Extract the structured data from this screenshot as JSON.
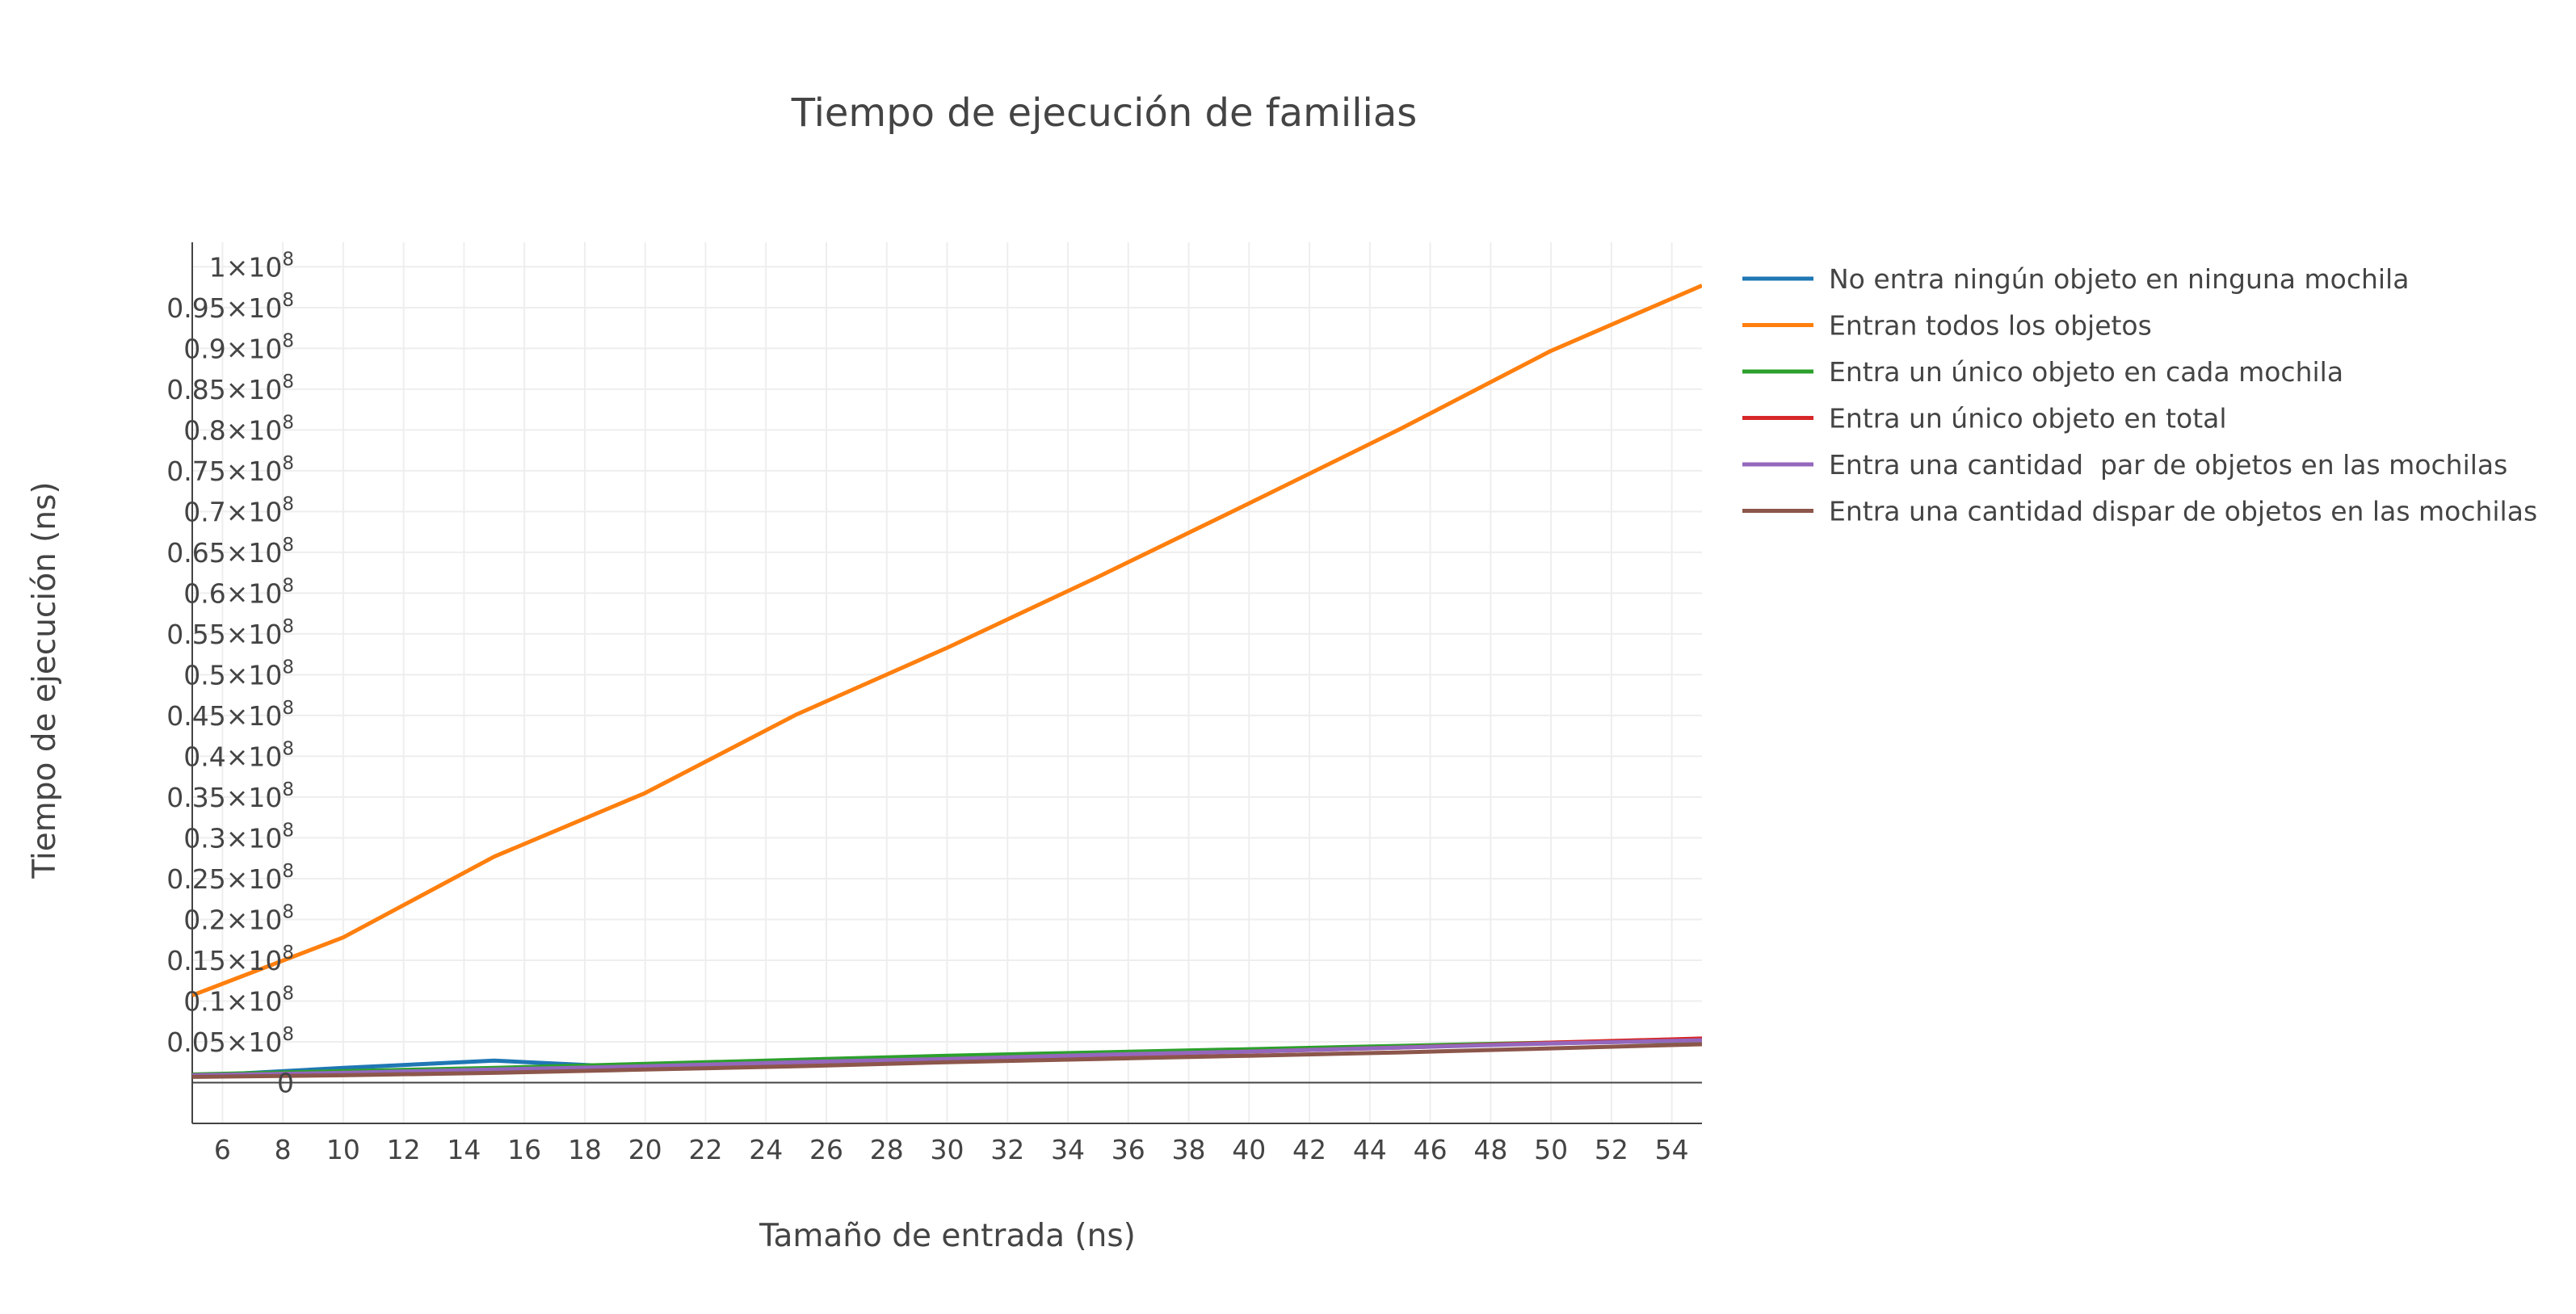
{
  "chart_data": {
    "type": "line",
    "title": "Tiempo de ejecución de familias",
    "xlabel": "Tamaño de entrada (ns)",
    "ylabel": "Tiempo de ejecución (ns)",
    "xlim": [
      5,
      55
    ],
    "ylim": [
      -5000000,
      103000000
    ],
    "xticks": [
      6,
      8,
      10,
      12,
      14,
      16,
      18,
      20,
      22,
      24,
      26,
      28,
      30,
      32,
      34,
      36,
      38,
      40,
      42,
      44,
      46,
      48,
      50,
      52,
      54
    ],
    "yticks": [
      {
        "value": 0,
        "label": "0",
        "exp": ""
      },
      {
        "value": 5000000,
        "label": "0.05×10",
        "exp": "8"
      },
      {
        "value": 10000000,
        "label": "0.1×10",
        "exp": "8"
      },
      {
        "value": 15000000,
        "label": "0.15×10",
        "exp": "8"
      },
      {
        "value": 20000000,
        "label": "0.2×10",
        "exp": "8"
      },
      {
        "value": 25000000,
        "label": "0.25×10",
        "exp": "8"
      },
      {
        "value": 30000000,
        "label": "0.3×10",
        "exp": "8"
      },
      {
        "value": 35000000,
        "label": "0.35×10",
        "exp": "8"
      },
      {
        "value": 40000000,
        "label": "0.4×10",
        "exp": "8"
      },
      {
        "value": 45000000,
        "label": "0.45×10",
        "exp": "8"
      },
      {
        "value": 50000000,
        "label": "0.5×10",
        "exp": "8"
      },
      {
        "value": 55000000,
        "label": "0.55×10",
        "exp": "8"
      },
      {
        "value": 60000000,
        "label": "0.6×10",
        "exp": "8"
      },
      {
        "value": 65000000,
        "label": "0.65×10",
        "exp": "8"
      },
      {
        "value": 70000000,
        "label": "0.7×10",
        "exp": "8"
      },
      {
        "value": 75000000,
        "label": "0.75×10",
        "exp": "8"
      },
      {
        "value": 80000000,
        "label": "0.8×10",
        "exp": "8"
      },
      {
        "value": 85000000,
        "label": "0.85×10",
        "exp": "8"
      },
      {
        "value": 90000000,
        "label": "0.9×10",
        "exp": "8"
      },
      {
        "value": 95000000,
        "label": "0.95×10",
        "exp": "8"
      },
      {
        "value": 100000000,
        "label": "1×10",
        "exp": "8"
      }
    ],
    "grid": true,
    "legend_position": "right",
    "series": [
      {
        "name": "No entra ningún objeto en ninguna mochila",
        "color": "#1f77b4",
        "x": [
          5,
          10,
          15,
          20,
          25,
          30,
          35,
          40,
          45,
          50,
          55
        ],
        "y": [
          800000,
          1800000,
          2700000,
          1800000,
          2400000,
          2900000,
          3400000,
          3900000,
          4400000,
          4800000,
          5300000
        ]
      },
      {
        "name": "Entran todos los objetos",
        "color": "#ff7f0e",
        "x": [
          5,
          10,
          15,
          20,
          25,
          30,
          35,
          40,
          45,
          50,
          55
        ],
        "y": [
          10700000,
          17800000,
          27700000,
          35500000,
          45100000,
          53300000,
          62000000,
          71000000,
          80100000,
          89700000,
          97700000
        ]
      },
      {
        "name": "Entra un único objeto en cada mochila",
        "color": "#2ca02c",
        "x": [
          5,
          10,
          15,
          20,
          25,
          30,
          35,
          40,
          45,
          50,
          55
        ],
        "y": [
          1000000,
          1400000,
          1800000,
          2300000,
          2800000,
          3300000,
          3700000,
          4100000,
          4500000,
          4900000,
          5100000
        ]
      },
      {
        "name": "Entra un único objeto en total",
        "color": "#d62728",
        "x": [
          5,
          10,
          15,
          20,
          25,
          30,
          35,
          40,
          45,
          50,
          55
        ],
        "y": [
          900000,
          1100000,
          1500000,
          1900000,
          2300000,
          2800000,
          3300000,
          3800000,
          4300000,
          4900000,
          5400000
        ]
      },
      {
        "name": "Entra una cantidad  par de objetos en las mochilas",
        "color": "#9467bd",
        "x": [
          5,
          10,
          15,
          20,
          25,
          30,
          35,
          40,
          45,
          50,
          55
        ],
        "y": [
          900000,
          1200000,
          1600000,
          2000000,
          2500000,
          2900000,
          3400000,
          3800000,
          4300000,
          4800000,
          5200000
        ]
      },
      {
        "name": "Entra una cantidad dispar de objetos en las mochilas",
        "color": "#8c564b",
        "x": [
          5,
          10,
          15,
          20,
          25,
          30,
          35,
          40,
          45,
          50,
          55
        ],
        "y": [
          700000,
          900000,
          1200000,
          1600000,
          2000000,
          2500000,
          2900000,
          3300000,
          3700000,
          4200000,
          4700000
        ]
      }
    ]
  }
}
